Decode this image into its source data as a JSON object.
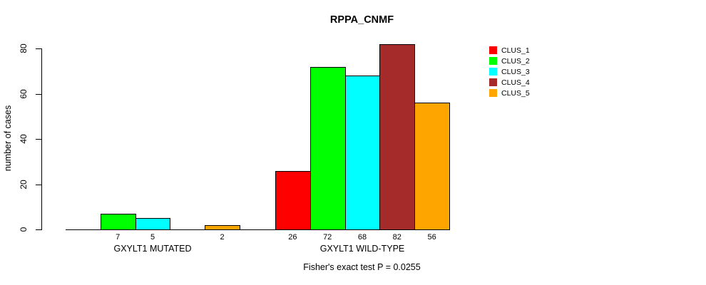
{
  "chart_data": {
    "type": "bar",
    "title": "RPPA_CNMF",
    "ylabel": "number of cases",
    "xlabel": "",
    "annotation": "Fisher's exact test P = 0.0255",
    "ylim": [
      0,
      80
    ],
    "yticks": [
      0,
      20,
      40,
      60,
      80
    ],
    "grid": false,
    "legend_position": "right",
    "categories": [
      "GXYLT1 MUTATED",
      "GXYLT1 WILD-TYPE"
    ],
    "series": [
      {
        "name": "CLUS_1",
        "color": "#FF0000",
        "values": [
          0,
          26
        ]
      },
      {
        "name": "CLUS_2",
        "color": "#00FF00",
        "values": [
          7,
          72
        ]
      },
      {
        "name": "CLUS_3",
        "color": "#00FFFF",
        "values": [
          5,
          68
        ]
      },
      {
        "name": "CLUS_4",
        "color": "#A52A2A",
        "values": [
          0,
          82
        ]
      },
      {
        "name": "CLUS_5",
        "color": "#FFA500",
        "values": [
          2,
          56
        ]
      }
    ],
    "bar_value_labels": [
      [
        "",
        "7",
        "5",
        "",
        "2"
      ],
      [
        "26",
        "72",
        "68",
        "82",
        "56"
      ]
    ]
  }
}
